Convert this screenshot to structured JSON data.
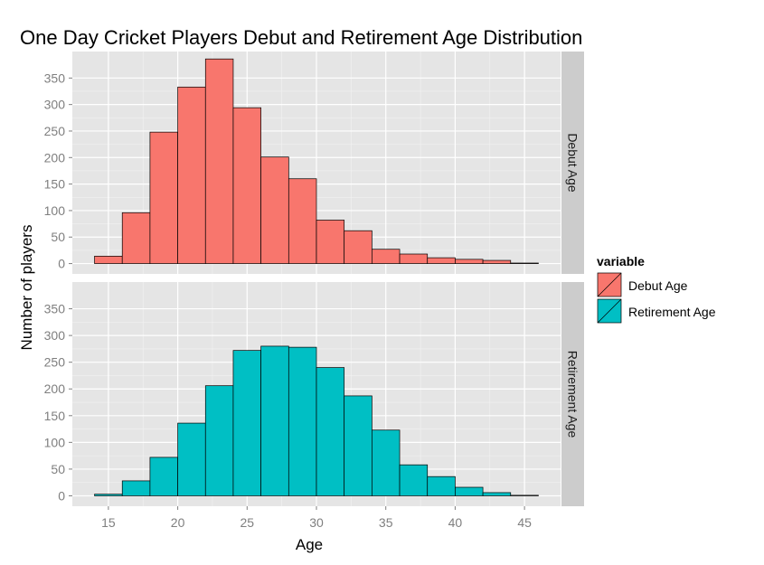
{
  "chart_data": {
    "type": "bar",
    "title": "One Day Cricket Players Debut and Retirement Age Distribution",
    "xlabel": "Age",
    "ylabel": "Number of players",
    "xlim": [
      12.4,
      47.6
    ],
    "ylim": [
      -19.5,
      400
    ],
    "x_ticks": [
      15,
      20,
      25,
      30,
      35,
      40,
      45
    ],
    "y_ticks": [
      0,
      50,
      100,
      150,
      200,
      250,
      300,
      350
    ],
    "bin_width": 2,
    "bin_starts": [
      14,
      16,
      18,
      20,
      22,
      24,
      26,
      28,
      30,
      32,
      34,
      36,
      38,
      40,
      42,
      44
    ],
    "legend_title": "variable",
    "legend_position": "right",
    "grid": true,
    "series": [
      {
        "name": "Debut Age",
        "color": "#F8766D",
        "values": [
          14,
          96,
          248,
          333,
          386,
          294,
          201,
          160,
          82,
          62,
          27,
          18,
          11,
          8,
          6,
          1
        ]
      },
      {
        "name": "Retirement Age",
        "color": "#00BFC4",
        "values": [
          3,
          28,
          72,
          136,
          206,
          272,
          280,
          278,
          240,
          187,
          123,
          58,
          36,
          16,
          6,
          1
        ]
      }
    ]
  }
}
